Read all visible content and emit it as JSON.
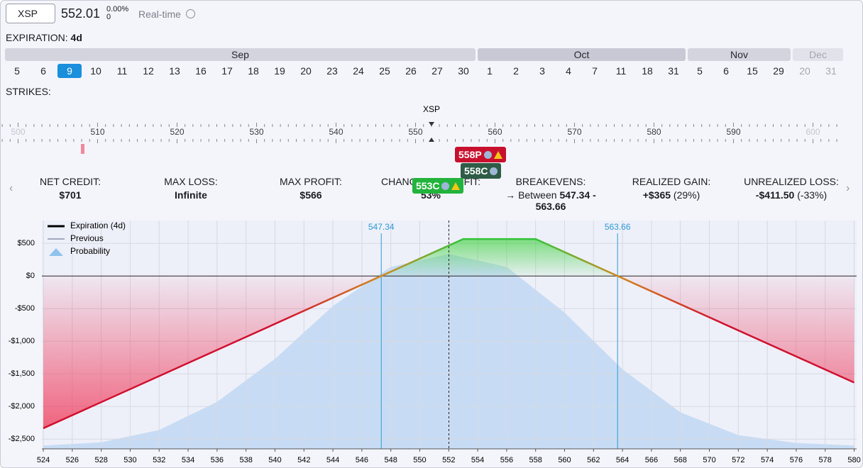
{
  "header": {
    "symbol": "XSP",
    "price": "552.01",
    "change_pct": "0.00%",
    "change": "0",
    "mode": "Real-time"
  },
  "expiration": {
    "label": "EXPIRATION:",
    "value": "4d",
    "months": [
      {
        "name": "Sep",
        "days": [
          "5",
          "6",
          "9",
          "10",
          "11",
          "12",
          "13",
          "16",
          "17",
          "18",
          "19",
          "20",
          "23",
          "24",
          "25",
          "26",
          "27",
          "30"
        ],
        "selected_index": 2
      },
      {
        "name": "Oct",
        "days": [
          "1",
          "2",
          "3",
          "4",
          "7",
          "11",
          "18",
          "31"
        ]
      },
      {
        "name": "Nov",
        "days": [
          "5",
          "6",
          "15",
          "29"
        ]
      },
      {
        "name": "Dec",
        "days": [
          "20",
          "31"
        ],
        "disabled": true
      }
    ]
  },
  "strikes": {
    "label": "STRIKES:",
    "underlying": "XSP",
    "ticks": [
      500,
      510,
      520,
      530,
      540,
      550,
      560,
      570,
      580,
      590,
      600
    ]
  },
  "positions": [
    {
      "label": "558P",
      "color": "#c8102e"
    },
    {
      "label": "558C",
      "color": "#2e5c46"
    },
    {
      "label": "553C",
      "color": "#22b33c"
    }
  ],
  "stats": [
    {
      "label": "NET CREDIT:",
      "value": "$701"
    },
    {
      "label": "MAX LOSS:",
      "value": "Infinite"
    },
    {
      "label": "MAX PROFIT:",
      "value": "$566"
    },
    {
      "label": "CHANCE OF PROFIT:",
      "value": "53%"
    },
    {
      "label": "BREAKEVENS:",
      "prefix": "Between",
      "value": "547.34 -",
      "value2": "563.66"
    },
    {
      "label": "REALIZED GAIN:",
      "value": "+$365",
      "note": "(29%)"
    },
    {
      "label": "UNREALIZED LOSS:",
      "value": "-$411.50",
      "note": "(-33%)"
    }
  ],
  "chart_data": {
    "type": "line",
    "series": [
      {
        "name": "Expiration (4d)",
        "color": "#d0102e",
        "x": [
          524,
          547.34,
          553,
          558,
          563.66,
          580
        ],
        "values": [
          -2334,
          0,
          566,
          566,
          0,
          -1634
        ]
      },
      {
        "name": "Previous",
        "color": "#8a8fa8",
        "x": [],
        "values": []
      },
      {
        "name": "Probability",
        "color": "#b9d6f2",
        "x": [
          524,
          528,
          532,
          536,
          540,
          544,
          548,
          552,
          556,
          560,
          564,
          568,
          572,
          576,
          580
        ],
        "values": [
          -2600,
          -2550,
          -2360,
          -1930,
          -1270,
          -460,
          140,
          337,
          140,
          -560,
          -1430,
          -2090,
          -2440,
          -2560,
          -2600
        ]
      }
    ],
    "breakevens": [
      547.34,
      563.66
    ],
    "current_price": 552.01,
    "xlim": [
      523.9,
      580.17
    ],
    "ylim": [
      -2650,
      850
    ],
    "xticks": [
      524,
      526,
      528,
      530,
      532,
      534,
      536,
      538,
      540,
      542,
      544,
      546,
      548,
      550,
      552,
      554,
      556,
      558,
      560,
      562,
      564,
      566,
      568,
      570,
      572,
      574,
      576,
      578,
      580
    ],
    "yticks": [
      {
        "value": 500,
        "label": "$500"
      },
      {
        "value": 0,
        "label": "$0"
      },
      {
        "value": -500,
        "label": "-$500"
      },
      {
        "value": -1000,
        "label": "-$1,000"
      },
      {
        "value": -1500,
        "label": "-$1,500"
      },
      {
        "value": -2000,
        "label": "-$2,000"
      },
      {
        "value": -2500,
        "label": "-$2,500"
      }
    ],
    "grid": true
  }
}
